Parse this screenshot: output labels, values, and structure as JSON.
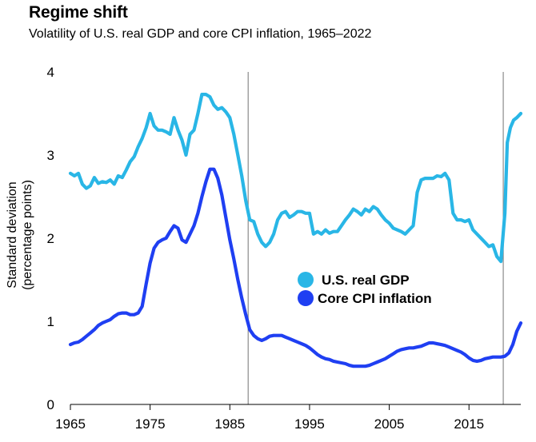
{
  "header": {
    "title": "Regime shift",
    "subtitle": "Volatility of U.S. real GDP and core CPI inflation, 1965–2022"
  },
  "chart_data": {
    "type": "line",
    "title": "Regime shift",
    "subtitle": "Volatility of U.S. real GDP and core CPI inflation, 1965–2022",
    "xlabel": "",
    "ylabel": "Standard deviation (percentage points)",
    "ylabel_lines": [
      "Standard deviation",
      "(percentage points)"
    ],
    "xlim": [
      1965,
      2021.5
    ],
    "ylim": [
      0,
      4
    ],
    "xticks": [
      1965,
      1975,
      1985,
      1995,
      2005,
      2015
    ],
    "yticks": [
      0,
      1,
      2,
      3,
      4
    ],
    "vlines": [
      1987.3,
      2019.3
    ],
    "grid": false,
    "legend": "center-right",
    "series": [
      {
        "name": "U.S. real GDP",
        "color": "#29b6e6",
        "points": [
          [
            1965,
            2.78
          ],
          [
            1965.5,
            2.75
          ],
          [
            1966,
            2.78
          ],
          [
            1966.5,
            2.65
          ],
          [
            1967,
            2.6
          ],
          [
            1967.5,
            2.63
          ],
          [
            1968,
            2.73
          ],
          [
            1968.5,
            2.66
          ],
          [
            1969,
            2.68
          ],
          [
            1969.5,
            2.67
          ],
          [
            1970,
            2.7
          ],
          [
            1970.5,
            2.65
          ],
          [
            1971,
            2.75
          ],
          [
            1971.5,
            2.73
          ],
          [
            1972,
            2.82
          ],
          [
            1972.5,
            2.92
          ],
          [
            1973,
            2.98
          ],
          [
            1973.5,
            3.1
          ],
          [
            1974,
            3.2
          ],
          [
            1974.5,
            3.33
          ],
          [
            1975,
            3.5
          ],
          [
            1975.5,
            3.35
          ],
          [
            1976,
            3.3
          ],
          [
            1976.5,
            3.3
          ],
          [
            1977,
            3.28
          ],
          [
            1977.5,
            3.25
          ],
          [
            1978,
            3.45
          ],
          [
            1978.5,
            3.3
          ],
          [
            1979,
            3.18
          ],
          [
            1979.5,
            3.0
          ],
          [
            1980,
            3.25
          ],
          [
            1980.5,
            3.3
          ],
          [
            1981,
            3.5
          ],
          [
            1981.5,
            3.73
          ],
          [
            1982,
            3.73
          ],
          [
            1982.5,
            3.7
          ],
          [
            1983,
            3.6
          ],
          [
            1983.5,
            3.55
          ],
          [
            1984,
            3.57
          ],
          [
            1984.5,
            3.52
          ],
          [
            1985,
            3.45
          ],
          [
            1985.5,
            3.25
          ],
          [
            1986,
            3.0
          ],
          [
            1986.5,
            2.75
          ],
          [
            1987,
            2.45
          ],
          [
            1987.5,
            2.22
          ],
          [
            1988,
            2.2
          ],
          [
            1988.5,
            2.05
          ],
          [
            1989,
            1.95
          ],
          [
            1989.5,
            1.9
          ],
          [
            1990,
            1.95
          ],
          [
            1990.5,
            2.05
          ],
          [
            1991,
            2.22
          ],
          [
            1991.5,
            2.3
          ],
          [
            1992,
            2.32
          ],
          [
            1992.5,
            2.25
          ],
          [
            1993,
            2.28
          ],
          [
            1993.5,
            2.32
          ],
          [
            1994,
            2.32
          ],
          [
            1994.5,
            2.3
          ],
          [
            1995,
            2.3
          ],
          [
            1995.5,
            2.05
          ],
          [
            1996,
            2.08
          ],
          [
            1996.5,
            2.05
          ],
          [
            1997,
            2.1
          ],
          [
            1997.5,
            2.06
          ],
          [
            1998,
            2.08
          ],
          [
            1998.5,
            2.08
          ],
          [
            1999,
            2.15
          ],
          [
            1999.5,
            2.22
          ],
          [
            2000,
            2.28
          ],
          [
            2000.5,
            2.35
          ],
          [
            2001,
            2.32
          ],
          [
            2001.5,
            2.28
          ],
          [
            2002,
            2.35
          ],
          [
            2002.5,
            2.32
          ],
          [
            2003,
            2.38
          ],
          [
            2003.5,
            2.35
          ],
          [
            2004,
            2.28
          ],
          [
            2004.5,
            2.22
          ],
          [
            2005,
            2.18
          ],
          [
            2005.5,
            2.12
          ],
          [
            2006,
            2.1
          ],
          [
            2006.5,
            2.08
          ],
          [
            2007,
            2.05
          ],
          [
            2007.5,
            2.1
          ],
          [
            2008,
            2.15
          ],
          [
            2008.5,
            2.55
          ],
          [
            2009,
            2.7
          ],
          [
            2009.5,
            2.72
          ],
          [
            2010,
            2.72
          ],
          [
            2010.5,
            2.72
          ],
          [
            2011,
            2.75
          ],
          [
            2011.5,
            2.74
          ],
          [
            2012,
            2.78
          ],
          [
            2012.5,
            2.7
          ],
          [
            2013,
            2.3
          ],
          [
            2013.5,
            2.22
          ],
          [
            2014,
            2.22
          ],
          [
            2014.5,
            2.2
          ],
          [
            2015,
            2.22
          ],
          [
            2015.5,
            2.1
          ],
          [
            2016,
            2.05
          ],
          [
            2016.5,
            2.0
          ],
          [
            2017,
            1.95
          ],
          [
            2017.5,
            1.9
          ],
          [
            2018,
            1.92
          ],
          [
            2018.5,
            1.78
          ],
          [
            2019,
            1.72
          ],
          [
            2019.5,
            2.3
          ],
          [
            2019.8,
            3.15
          ],
          [
            2020.2,
            3.33
          ],
          [
            2020.6,
            3.42
          ],
          [
            2021,
            3.45
          ],
          [
            2021.5,
            3.5
          ]
        ]
      },
      {
        "name": "Core CPI inflation",
        "color": "#1f3ff2",
        "points": [
          [
            1965,
            0.72
          ],
          [
            1965.5,
            0.74
          ],
          [
            1966,
            0.75
          ],
          [
            1966.5,
            0.78
          ],
          [
            1967,
            0.82
          ],
          [
            1967.5,
            0.86
          ],
          [
            1968,
            0.9
          ],
          [
            1968.5,
            0.95
          ],
          [
            1969,
            0.98
          ],
          [
            1969.5,
            1.0
          ],
          [
            1970,
            1.02
          ],
          [
            1970.5,
            1.06
          ],
          [
            1971,
            1.09
          ],
          [
            1971.5,
            1.1
          ],
          [
            1972,
            1.1
          ],
          [
            1972.5,
            1.08
          ],
          [
            1973,
            1.08
          ],
          [
            1973.5,
            1.1
          ],
          [
            1974,
            1.18
          ],
          [
            1974.5,
            1.45
          ],
          [
            1975,
            1.7
          ],
          [
            1975.5,
            1.88
          ],
          [
            1976,
            1.95
          ],
          [
            1976.5,
            1.98
          ],
          [
            1977,
            2.0
          ],
          [
            1977.5,
            2.08
          ],
          [
            1978,
            2.15
          ],
          [
            1978.5,
            2.12
          ],
          [
            1979,
            1.98
          ],
          [
            1979.5,
            1.95
          ],
          [
            1980,
            2.05
          ],
          [
            1980.5,
            2.15
          ],
          [
            1981,
            2.3
          ],
          [
            1981.5,
            2.5
          ],
          [
            1982,
            2.68
          ],
          [
            1982.5,
            2.83
          ],
          [
            1983,
            2.83
          ],
          [
            1983.5,
            2.72
          ],
          [
            1984,
            2.52
          ],
          [
            1984.5,
            2.25
          ],
          [
            1985,
            1.98
          ],
          [
            1985.5,
            1.75
          ],
          [
            1986,
            1.5
          ],
          [
            1986.5,
            1.28
          ],
          [
            1987,
            1.08
          ],
          [
            1987.5,
            0.9
          ],
          [
            1988,
            0.83
          ],
          [
            1988.5,
            0.79
          ],
          [
            1989,
            0.77
          ],
          [
            1989.5,
            0.79
          ],
          [
            1990,
            0.82
          ],
          [
            1990.5,
            0.83
          ],
          [
            1991,
            0.83
          ],
          [
            1991.5,
            0.83
          ],
          [
            1992,
            0.81
          ],
          [
            1992.5,
            0.79
          ],
          [
            1993,
            0.77
          ],
          [
            1993.5,
            0.75
          ],
          [
            1994,
            0.73
          ],
          [
            1994.5,
            0.71
          ],
          [
            1995,
            0.68
          ],
          [
            1995.5,
            0.64
          ],
          [
            1996,
            0.6
          ],
          [
            1996.5,
            0.57
          ],
          [
            1997,
            0.55
          ],
          [
            1997.5,
            0.54
          ],
          [
            1998,
            0.52
          ],
          [
            1998.5,
            0.51
          ],
          [
            1999,
            0.5
          ],
          [
            1999.5,
            0.49
          ],
          [
            2000,
            0.47
          ],
          [
            2000.5,
            0.46
          ],
          [
            2001,
            0.46
          ],
          [
            2001.5,
            0.46
          ],
          [
            2002,
            0.46
          ],
          [
            2002.5,
            0.47
          ],
          [
            2003,
            0.49
          ],
          [
            2003.5,
            0.51
          ],
          [
            2004,
            0.53
          ],
          [
            2004.5,
            0.55
          ],
          [
            2005,
            0.58
          ],
          [
            2005.5,
            0.61
          ],
          [
            2006,
            0.64
          ],
          [
            2006.5,
            0.66
          ],
          [
            2007,
            0.67
          ],
          [
            2007.5,
            0.68
          ],
          [
            2008,
            0.68
          ],
          [
            2008.5,
            0.69
          ],
          [
            2009,
            0.7
          ],
          [
            2009.5,
            0.72
          ],
          [
            2010,
            0.74
          ],
          [
            2010.5,
            0.74
          ],
          [
            2011,
            0.73
          ],
          [
            2011.5,
            0.72
          ],
          [
            2012,
            0.71
          ],
          [
            2012.5,
            0.69
          ],
          [
            2013,
            0.67
          ],
          [
            2013.5,
            0.65
          ],
          [
            2014,
            0.63
          ],
          [
            2014.5,
            0.6
          ],
          [
            2015,
            0.56
          ],
          [
            2015.5,
            0.53
          ],
          [
            2016,
            0.52
          ],
          [
            2016.5,
            0.53
          ],
          [
            2017,
            0.55
          ],
          [
            2017.5,
            0.56
          ],
          [
            2018,
            0.57
          ],
          [
            2018.5,
            0.57
          ],
          [
            2019,
            0.57
          ],
          [
            2019.5,
            0.58
          ],
          [
            2020,
            0.62
          ],
          [
            2020.5,
            0.72
          ],
          [
            2021,
            0.88
          ],
          [
            2021.5,
            0.98
          ]
        ]
      }
    ]
  }
}
